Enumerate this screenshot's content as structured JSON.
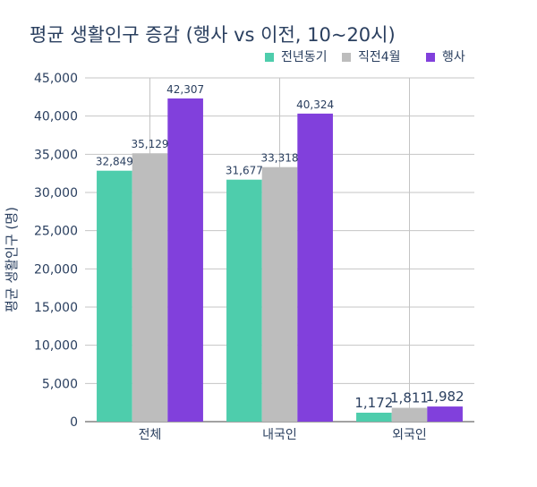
{
  "chart_data": {
    "type": "bar",
    "title": "평균 생활인구 증감 (행사 vs 이전, 10~20시)",
    "xlabel": "",
    "ylabel": "평균 생활인구 (명)",
    "categories": [
      "전체",
      "내국인",
      "외국인"
    ],
    "series": [
      {
        "name": "전년동기",
        "color": "#4ecdac",
        "values": [
          32849,
          31677,
          1172
        ]
      },
      {
        "name": "직전4월",
        "color": "#bdbdbd",
        "values": [
          35129,
          33318,
          1811
        ]
      },
      {
        "name": "행사",
        "color": "#8140dc",
        "values": [
          42307,
          40324,
          1982
        ]
      }
    ],
    "data_labels": [
      [
        "32,849",
        "31,677",
        "1,172"
      ],
      [
        "35,129",
        "33,318",
        "1,811"
      ],
      [
        "42,307",
        "40,324",
        "1,982"
      ]
    ],
    "yticks": [
      0,
      5000,
      10000,
      15000,
      20000,
      25000,
      30000,
      35000,
      40000,
      45000
    ],
    "ytick_labels": [
      "0",
      "5,000",
      "10,000",
      "15,000",
      "20,000",
      "25,000",
      "30,000",
      "35,000",
      "40,000",
      "45,000"
    ],
    "ylim": [
      0,
      45000
    ],
    "grid": true,
    "legend_position": "top-right"
  }
}
